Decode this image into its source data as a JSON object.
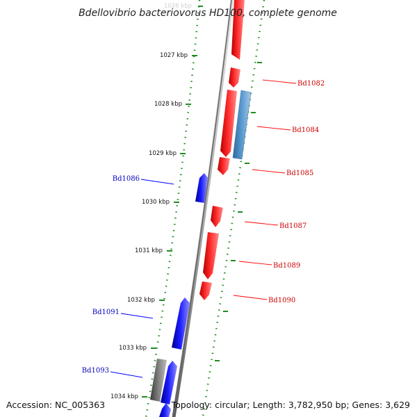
{
  "header": {
    "title": "Bdellovibrio bacteriovorus HD100, complete genome"
  },
  "footer": {
    "accession": "Accession: NC_005363",
    "topology": "Topology: circular; Length: 3,782,950 bp; Genes: 3,629"
  },
  "scale": {
    "ticks": [
      {
        "label": "1026 kbp",
        "faded": true
      },
      {
        "label": "1027 kbp"
      },
      {
        "label": "1028 kbp"
      },
      {
        "label": "1029 kbp"
      },
      {
        "label": "1030 kbp"
      },
      {
        "label": "1031 kbp"
      },
      {
        "label": "1032 kbp"
      },
      {
        "label": "1033 kbp"
      },
      {
        "label": "1034 kbp"
      }
    ]
  },
  "genes": [
    {
      "label": "Bd1082",
      "strand": "forward"
    },
    {
      "label": "Bd1084",
      "strand": "forward"
    },
    {
      "label": "Bd1085",
      "strand": "forward"
    },
    {
      "label": "Bd1086",
      "strand": "reverse"
    },
    {
      "label": "Bd1087",
      "strand": "forward"
    },
    {
      "label": "Bd1089",
      "strand": "forward"
    },
    {
      "label": "Bd1090",
      "strand": "forward"
    },
    {
      "label": "Bd1091",
      "strand": "reverse"
    },
    {
      "label": "Bd1093",
      "strand": "reverse"
    }
  ],
  "colors": {
    "forward": "#ff0000",
    "reverse": "#0000ff",
    "rna": "#4f8fc4",
    "pseudo": "#777777",
    "tick": "#1e8c1e",
    "axis": "#888888"
  }
}
